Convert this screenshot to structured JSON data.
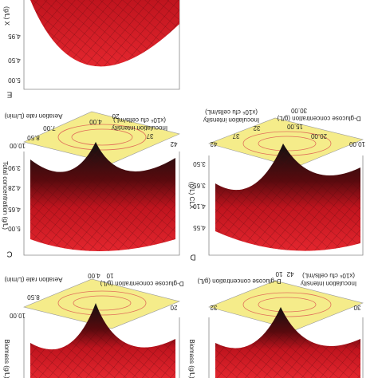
{
  "panels": [
    {
      "label": "E",
      "y_title": "(g/L) X",
      "y_ticks": [
        "4.50",
        "4.95",
        "5.00"
      ]
    },
    {
      "label": "C",
      "y_title": "Total concentration (g/L)",
      "y_ticks": [
        "3.90",
        "4.28",
        "4.65",
        "5.00"
      ],
      "x_title": "Aeration rate (L/min)",
      "x_ticks": [
        "4.00",
        "7.00",
        "8.50",
        "10.00"
      ],
      "z_title": "Inoculation intensity",
      "z_unit": "(x10⁶ cfu cells/mL)",
      "z_ticks": [
        "20",
        "32",
        "37",
        "42"
      ]
    },
    {
      "label": "D",
      "y_title": "(g/L) CLX",
      "y_ticks": [
        "3.50",
        "3.65",
        "4.10",
        "4.55"
      ],
      "x_title": "D-glucose concentration (g/L)",
      "x_ticks": [
        "10.00",
        "15.00",
        "20.00",
        "30.00"
      ],
      "z_title": "Inoculation intensity",
      "z_unit": "(x10⁶ cfu cells/mL)",
      "z_ticks": [
        "42",
        "37",
        "32"
      ]
    },
    {
      "x_title": "Aeration rate (L/min)",
      "x_ticks": [
        "4.00",
        "8.50",
        "10.00"
      ],
      "z_title": "D-glucose concentration (g/L)",
      "z_ticks": [
        "10",
        "20"
      ],
      "y_title": "Biomass (g/L)"
    },
    {
      "x_title": "D-glucose concentration (g/L)",
      "x_ticks": [
        "10",
        "42"
      ],
      "z_title": "Inoculation intensity",
      "z_unit": "(x10⁶ cfu cells/mL)",
      "z_ticks": [
        "32",
        "30"
      ],
      "y_title": "Biomass (g/L)"
    }
  ]
}
